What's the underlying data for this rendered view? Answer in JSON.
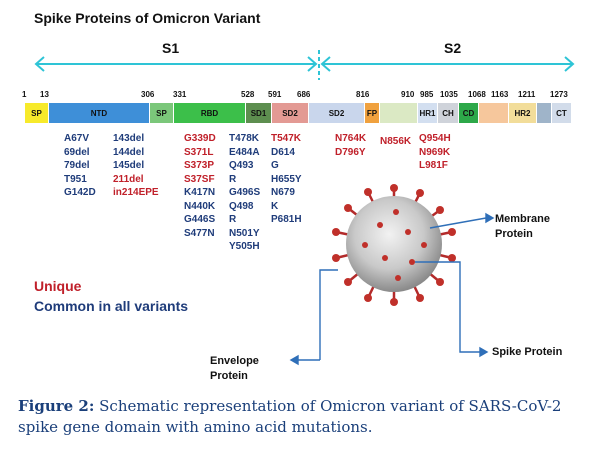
{
  "title": "Spike Proteins of Omicron Variant",
  "segments": {
    "s1": "S1",
    "s2": "S2"
  },
  "positions": [
    "1",
    "13",
    "306",
    "331",
    "528",
    "591",
    "686",
    "816",
    "910",
    "985",
    "1035",
    "1068",
    "1163",
    "1211",
    "1273"
  ],
  "domains": [
    "SP",
    "NTD",
    "SP",
    "RBD",
    "SD1",
    "SD2",
    "SD2",
    "FP",
    "HR1",
    "CH",
    "CD",
    "HR2",
    "CT"
  ],
  "mutations": {
    "ntd_col1": [
      "A67V",
      "69del",
      "79del",
      "T951",
      "G142D"
    ],
    "ntd_col2": [
      "143del",
      "144del",
      "145del",
      "211del",
      "in214EPE"
    ],
    "rbd_col1": [
      "G339D",
      "S371L",
      "S373P",
      "S37SF",
      "K417N",
      "N440K",
      "G446S",
      "S477N"
    ],
    "rbd_col2": [
      "T478K",
      "E484A",
      "Q493",
      "R",
      "G496S",
      "Q498",
      "R",
      "N501Y",
      "Y505H"
    ],
    "sd_col": [
      "T547K",
      "D614",
      "G",
      "H655Y",
      "N679",
      "K",
      "P681H"
    ],
    "s2_col1": [
      "N764K",
      "D796Y"
    ],
    "s2_col2": [
      "N856K"
    ],
    "s2_col3": [
      "Q954H",
      "N969K",
      "L981F"
    ]
  },
  "legend": {
    "unique": "Unique",
    "common": "Common in all variants"
  },
  "labels": {
    "membrane": [
      "Membrane",
      "Protein"
    ],
    "envelope": [
      "Envelope",
      "Protein"
    ],
    "spike": "Spike Protein"
  },
  "caption": {
    "label": "Figure 2:",
    "text": " Schematic representation of Omicron variant of SARS-CoV-2 spike gene domain with amino acid mutations."
  },
  "colors": {
    "accent_line": "#2ec4d6",
    "unique": "#c0202a",
    "common": "#1f3c7a",
    "caption": "#1a3f7a"
  }
}
